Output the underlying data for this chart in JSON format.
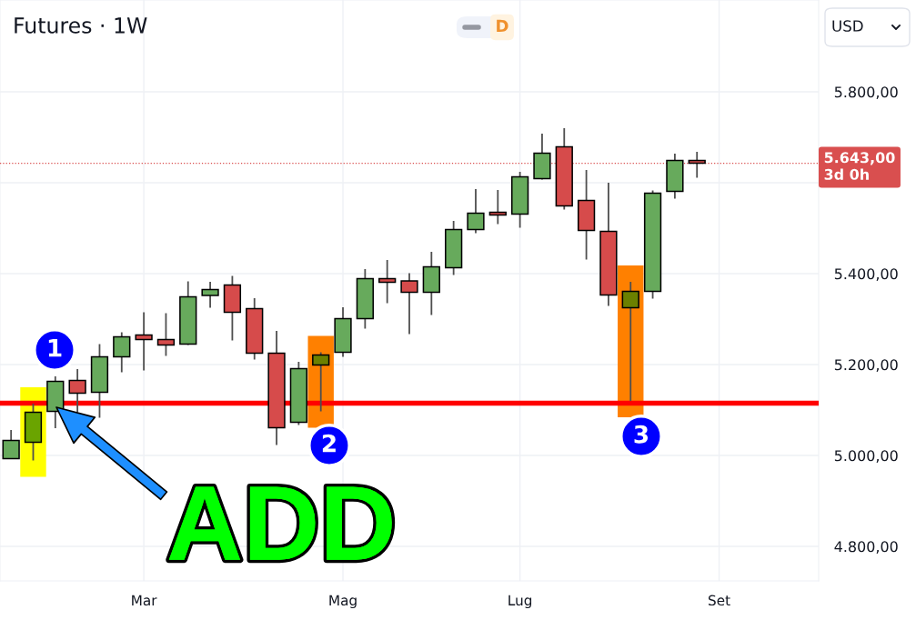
{
  "chart_data": {
    "type": "candlestick",
    "title": "Futures · 1W",
    "ylabel": "USD",
    "categories": [
      null,
      null,
      null,
      null,
      null,
      null,
      "Mar",
      null,
      null,
      null,
      null,
      null,
      null,
      null,
      null,
      "Mag",
      null,
      null,
      null,
      null,
      null,
      null,
      null,
      "Lug",
      null,
      null,
      null,
      null,
      null,
      null,
      null,
      null,
      "Set",
      null,
      null,
      null,
      null
    ],
    "ohlc": [
      [
        4993,
        5056,
        4992,
        5033
      ],
      [
        5029,
        5114,
        4989,
        5095
      ],
      [
        5097,
        5174,
        5060,
        5163
      ],
      [
        5165,
        5190,
        5095,
        5137
      ],
      [
        5139,
        5245,
        5083,
        5217
      ],
      [
        5217,
        5271,
        5183,
        5261
      ],
      [
        5265,
        5315,
        5187,
        5255
      ],
      [
        5255,
        5313,
        5219,
        5243
      ],
      [
        5245,
        5383,
        5243,
        5349
      ],
      [
        5352,
        5382,
        5325,
        5365
      ],
      [
        5375,
        5395,
        5253,
        5315
      ],
      [
        5323,
        5346,
        5211,
        5225
      ],
      [
        5225,
        5274,
        5023,
        5061
      ],
      [
        5073,
        5206,
        5067,
        5191
      ],
      [
        5199,
        5227,
        5097,
        5221
      ],
      [
        5227,
        5326,
        5217,
        5301
      ],
      [
        5301,
        5410,
        5279,
        5389
      ],
      [
        5389,
        5430,
        5335,
        5381
      ],
      [
        5384,
        5401,
        5267,
        5359
      ],
      [
        5359,
        5448,
        5309,
        5415
      ],
      [
        5413,
        5516,
        5397,
        5497
      ],
      [
        5497,
        5586,
        5489,
        5533
      ],
      [
        5535,
        5584,
        5509,
        5529
      ],
      [
        5531,
        5624,
        5501,
        5613
      ],
      [
        5609,
        5708,
        5607,
        5665
      ],
      [
        5679,
        5720,
        5541,
        5549
      ],
      [
        5561,
        5628,
        5431,
        5495
      ],
      [
        5493,
        5600,
        5329,
        5353
      ],
      [
        5325,
        5382,
        5120,
        5361
      ],
      [
        5361,
        5583,
        5345,
        5577
      ],
      [
        5581,
        5664,
        5565,
        5649
      ],
      [
        5649,
        5668,
        5611,
        5643
      ],
      null,
      null,
      null,
      null,
      null
    ],
    "colors": [
      "#67aa5c",
      "#6aa400",
      "#67aa5c",
      "#d64b4b",
      "#67aa5c",
      "#67aa5c",
      "#d64b4b",
      "#d64b4b",
      "#67aa5c",
      "#67aa5c",
      "#d64b4b",
      "#d64b4b",
      "#d64b4b",
      "#67aa5c",
      "#6b8000",
      "#67aa5c",
      "#67aa5c",
      "#d64b4b",
      "#d64b4b",
      "#67aa5c",
      "#67aa5c",
      "#67aa5c",
      "#d64b4b",
      "#67aa5c",
      "#67aa5c",
      "#d64b4b",
      "#d64b4b",
      "#d64b4b",
      "#6b8000",
      "#67aa5c",
      "#67aa5c",
      "#d64b4b",
      null,
      null,
      null,
      null,
      null
    ],
    "ylim": [
      4724,
      6002
    ],
    "yticks": [
      {
        "value": 4800,
        "label": "4.800,00"
      },
      {
        "value": 5000,
        "label": "5.000,00"
      },
      {
        "value": 5200,
        "label": "5.200,00"
      },
      {
        "value": 5400,
        "label": "5.400,00"
      },
      {
        "value": 5600,
        "label": null
      },
      {
        "value": 5800,
        "label": "5.800,00"
      }
    ],
    "grid": true,
    "ref_lines": [
      {
        "axis": "y",
        "value": 5115,
        "color": "#ff0000",
        "line_style": "solid"
      },
      {
        "axis": "y",
        "value": 5643,
        "label": "5.643,00\n3d 0h",
        "color": "#d94f4f",
        "line_style": "dotted"
      }
    ],
    "annotations": [
      "1",
      "2",
      "3",
      "ADD",
      "D"
    ]
  }
}
